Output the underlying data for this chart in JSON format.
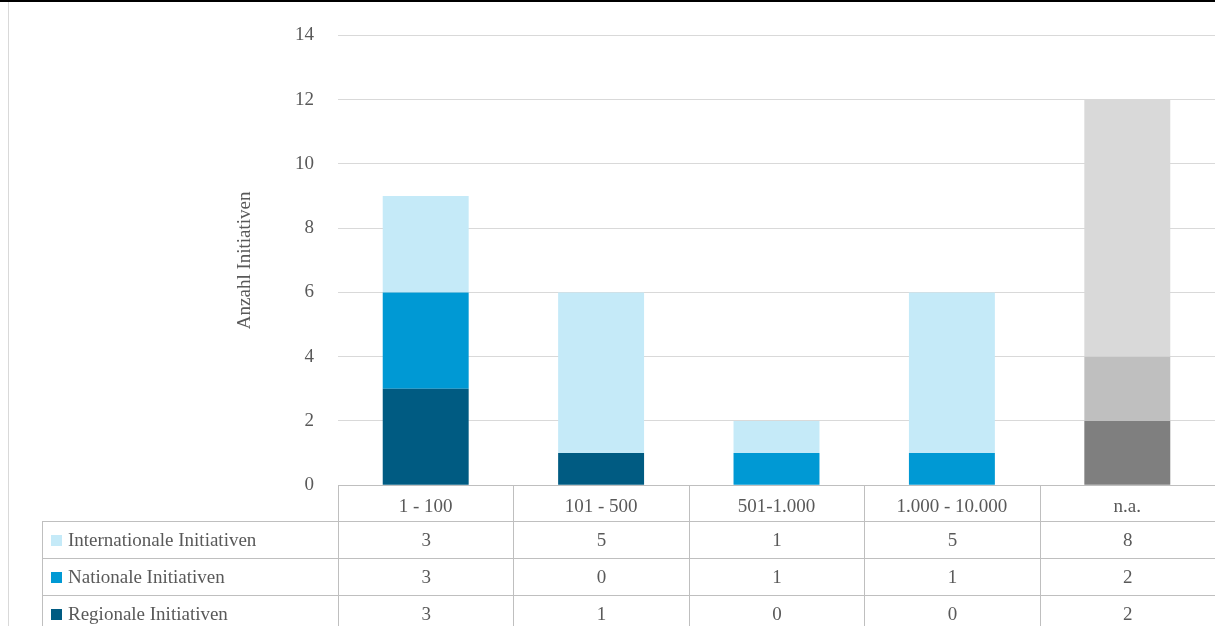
{
  "chart_data": {
    "type": "bar",
    "stacked": true,
    "ylabel": "Anzahl Initiativen",
    "categories": [
      "1 - 100",
      "101 - 500",
      "501-1.000",
      "1.000 - 10.000",
      "n.a."
    ],
    "series": [
      {
        "name": "Regionale Initiativen",
        "color": "#005b82",
        "colors": [
          "#005b82",
          "#005b82",
          "#005b82",
          "#005b82",
          "#7f7f7f"
        ],
        "values": [
          3,
          1,
          0,
          0,
          2
        ]
      },
      {
        "name": "Nationale Initiativen",
        "color": "#0099d4",
        "colors": [
          "#0099d4",
          "#0099d4",
          "#0099d4",
          "#0099d4",
          "#bfbfbf"
        ],
        "values": [
          3,
          0,
          1,
          1,
          2
        ]
      },
      {
        "name": "Internationale Initiativen",
        "color": "#c5eaf8",
        "colors": [
          "#c5eaf8",
          "#c5eaf8",
          "#c5eaf8",
          "#c5eaf8",
          "#d9d9d9"
        ],
        "values": [
          3,
          5,
          1,
          5,
          8
        ]
      }
    ],
    "ylim": [
      0,
      14
    ],
    "yticks": [
      0,
      2,
      4,
      6,
      8,
      10,
      12,
      14
    ],
    "grid": "y",
    "legend": "bottom left",
    "data_labels": true
  }
}
